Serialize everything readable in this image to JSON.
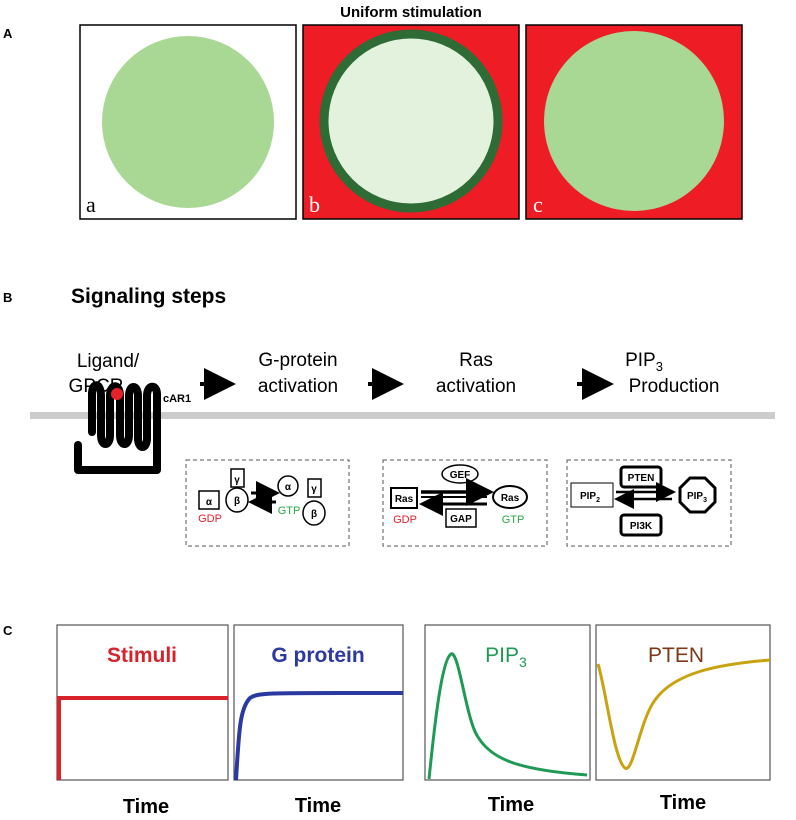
{
  "panel_a": {
    "panel_label": "A",
    "title": "Uniform stimulation",
    "cells": [
      {
        "label": "a",
        "background": "#ffffff",
        "fill": "#a8d894",
        "ring": "none"
      },
      {
        "label": "b",
        "background": "#ee1c25",
        "fill": "#e3f2dc",
        "ring": "#2e6b35"
      },
      {
        "label": "c",
        "background": "#ee1c25",
        "fill": "#a8d894",
        "ring": "none"
      }
    ]
  },
  "panel_b": {
    "panel_label": "B",
    "heading": "Signaling steps",
    "steps": {
      "ligand_line1": "Ligand/",
      "ligand_line2": "GPCR",
      "gprotein_line1": "G-protein",
      "gprotein_line2": "activation",
      "ras_line1": "Ras",
      "ras_line2": "activation",
      "pip_prefix": "PIP",
      "pip_sub": "3",
      "pip_line2": "Production"
    },
    "receptor_label": "cAR1",
    "gprotein_box": {
      "gamma": "γ",
      "alpha": "α",
      "beta": "β",
      "alpha_free": "α",
      "gamma2": "γ",
      "beta2": "β",
      "gdp": "GDP",
      "gtp": "GTP"
    },
    "ras_box": {
      "gef": "GEF",
      "ras_gdp": "Ras",
      "gdp": "GDP",
      "gap": "GAP",
      "ras_gtp": "Ras",
      "gtp": "GTP"
    },
    "pip_box": {
      "pip2": "PIP",
      "pip2_sub": "2",
      "pten": "PTEN",
      "pi3k": "PI3K",
      "pip3": "PIP",
      "pip3_sub": "3"
    },
    "colors": {
      "gdp": "#e8202a",
      "gtp": "#2aa84a",
      "membrane": "#cccccc",
      "ligand": "#e8202a"
    }
  },
  "panel_c": {
    "panel_label": "C",
    "plots": [
      {
        "title": "Stimuli",
        "title_sub": "",
        "color": "#d9212b",
        "xlabel": "Time"
      },
      {
        "title": "G protein",
        "title_sub": "",
        "color": "#2b3aa0",
        "xlabel": "Time"
      },
      {
        "title": "PIP",
        "title_sub": "3",
        "color": "#1e9a55",
        "xlabel": "Time"
      },
      {
        "title": "PTEN",
        "title_sub": "",
        "color": "#c9a210",
        "title_color": "#7a3a1a",
        "xlabel": "Time"
      }
    ]
  }
}
